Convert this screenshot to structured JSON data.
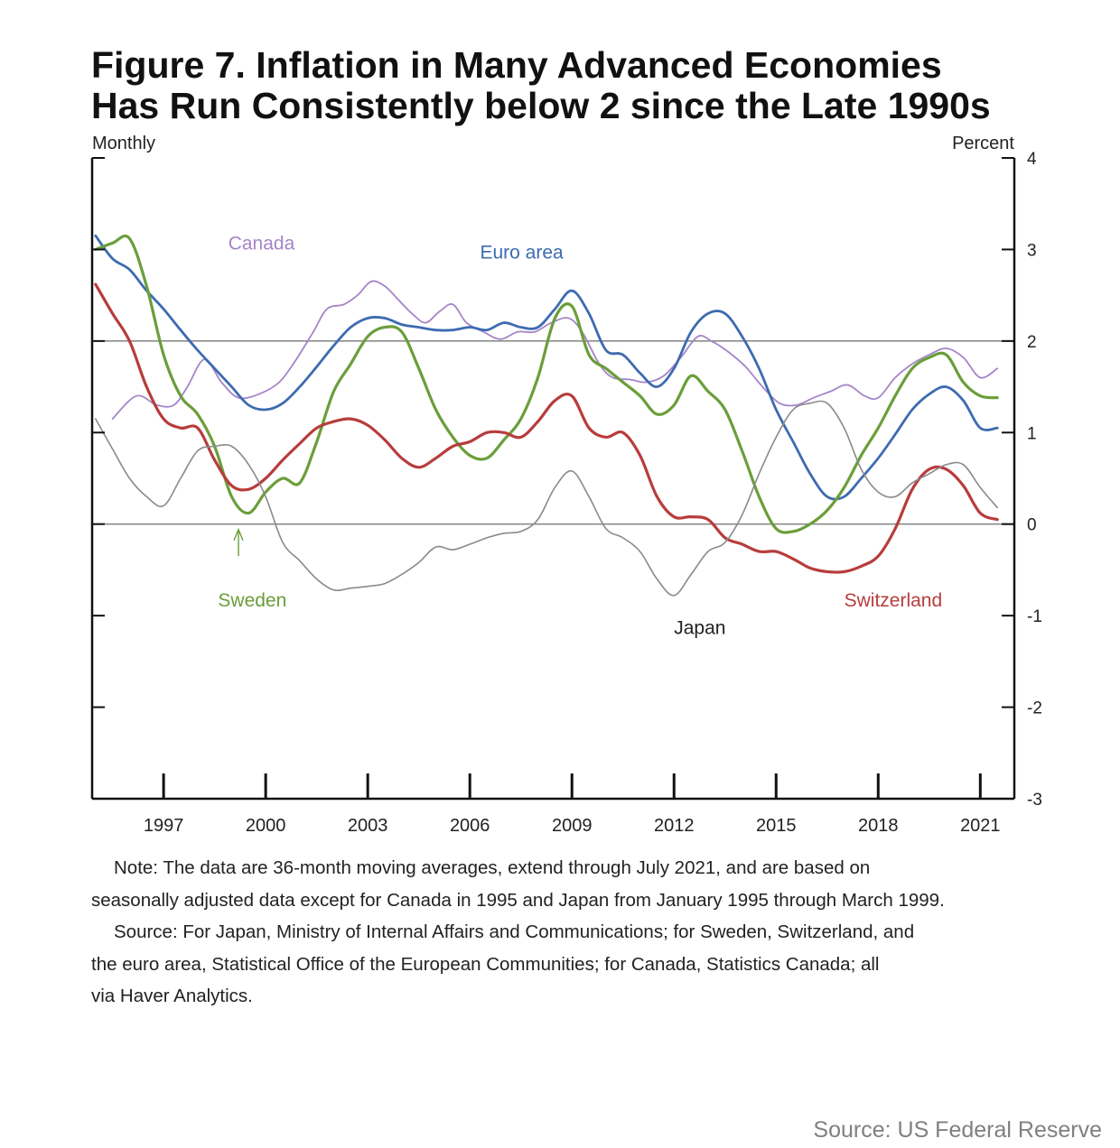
{
  "figure": {
    "title_line1": "Figure 7. Inflation in Many Advanced Economies",
    "title_line2": "Has Run Consistently below 2 since the Late 1990s",
    "left_unit": "Monthly",
    "right_unit": "Percent",
    "note_line1": "Note:  The data are 36-month moving averages, extend through July 2021, and are based on",
    "note_line2": "seasonally adjusted data except for Canada in 1995 and Japan from January 1995 through March 1999.",
    "source_line1": "Source:  For Japan, Ministry of Internal Affairs and Communications; for Sweden, Switzerland, and",
    "source_line2": "the euro area, Statistical Office of the European Communities; for Canada, Statistics Canada; all",
    "source_line3": "via Haver Analytics.",
    "credit": "Source: US Federal Reserve"
  },
  "chart_data": {
    "type": "line",
    "title": "Figure 7. Inflation in Many Advanced Economies Has Run Consistently below 2 since the Late 1990s",
    "xlabel": "",
    "ylabel": "Percent",
    "xlim": [
      1994.9,
      2022.0
    ],
    "ylim": [
      -3,
      4
    ],
    "x_ticks": [
      1997,
      2000,
      2003,
      2006,
      2009,
      2012,
      2015,
      2018,
      2021
    ],
    "x_tick_labels": [
      "1997",
      "2000",
      "2003",
      "2006",
      "2009",
      "2012",
      "2015",
      "2018",
      "2021"
    ],
    "y_ticks": [
      -3,
      -2,
      -1,
      0,
      1,
      2,
      3,
      4
    ],
    "y_tick_labels": [
      "-3",
      "-2",
      "-1",
      "0",
      "1",
      "2",
      "3",
      "4"
    ],
    "reference_lines": [
      0,
      2
    ],
    "grid": false,
    "series": [
      {
        "name": "Canada",
        "color": "#a585c8",
        "label_pos": [
          1998.9,
          3.0
        ],
        "points": [
          [
            1995.5,
            1.15
          ],
          [
            1996.2,
            1.4
          ],
          [
            1996.8,
            1.3
          ],
          [
            1997.3,
            1.3
          ],
          [
            1997.7,
            1.5
          ],
          [
            1998.2,
            1.8
          ],
          [
            1998.7,
            1.55
          ],
          [
            1999.2,
            1.38
          ],
          [
            1999.8,
            1.42
          ],
          [
            2000.4,
            1.55
          ],
          [
            2000.9,
            1.8
          ],
          [
            2001.4,
            2.1
          ],
          [
            2001.8,
            2.35
          ],
          [
            2002.3,
            2.4
          ],
          [
            2002.7,
            2.5
          ],
          [
            2003.1,
            2.65
          ],
          [
            2003.5,
            2.6
          ],
          [
            2003.9,
            2.45
          ],
          [
            2004.3,
            2.3
          ],
          [
            2004.7,
            2.2
          ],
          [
            2005.1,
            2.32
          ],
          [
            2005.5,
            2.4
          ],
          [
            2005.9,
            2.2
          ],
          [
            2006.4,
            2.1
          ],
          [
            2006.9,
            2.02
          ],
          [
            2007.4,
            2.1
          ],
          [
            2007.9,
            2.1
          ],
          [
            2008.4,
            2.2
          ],
          [
            2008.9,
            2.25
          ],
          [
            2009.3,
            2.1
          ],
          [
            2009.8,
            1.75
          ],
          [
            2010.2,
            1.6
          ],
          [
            2010.7,
            1.58
          ],
          [
            2011.2,
            1.55
          ],
          [
            2011.7,
            1.62
          ],
          [
            2012.2,
            1.82
          ],
          [
            2012.7,
            2.05
          ],
          [
            2013.1,
            2.0
          ],
          [
            2013.6,
            1.88
          ],
          [
            2014.1,
            1.72
          ],
          [
            2014.6,
            1.5
          ],
          [
            2015.1,
            1.32
          ],
          [
            2015.6,
            1.3
          ],
          [
            2016.1,
            1.38
          ],
          [
            2016.6,
            1.45
          ],
          [
            2017.1,
            1.52
          ],
          [
            2017.6,
            1.4
          ],
          [
            2018.0,
            1.38
          ],
          [
            2018.5,
            1.6
          ],
          [
            2019.0,
            1.75
          ],
          [
            2019.5,
            1.85
          ],
          [
            2020.0,
            1.92
          ],
          [
            2020.5,
            1.82
          ],
          [
            2021.0,
            1.6
          ],
          [
            2021.5,
            1.7
          ]
        ]
      },
      {
        "name": "Euro area",
        "color": "#3d6bb0",
        "label_pos": [
          2006.3,
          2.9
        ],
        "points": [
          [
            1995.0,
            3.15
          ],
          [
            1995.5,
            2.9
          ],
          [
            1996.0,
            2.78
          ],
          [
            1996.5,
            2.55
          ],
          [
            1997.0,
            2.35
          ],
          [
            1997.5,
            2.12
          ],
          [
            1998.0,
            1.9
          ],
          [
            1998.5,
            1.7
          ],
          [
            1999.0,
            1.5
          ],
          [
            1999.5,
            1.3
          ],
          [
            2000.0,
            1.25
          ],
          [
            2000.5,
            1.32
          ],
          [
            2001.0,
            1.5
          ],
          [
            2001.5,
            1.72
          ],
          [
            2002.0,
            1.95
          ],
          [
            2002.5,
            2.15
          ],
          [
            2003.0,
            2.25
          ],
          [
            2003.5,
            2.25
          ],
          [
            2004.0,
            2.18
          ],
          [
            2004.5,
            2.15
          ],
          [
            2005.0,
            2.12
          ],
          [
            2005.5,
            2.12
          ],
          [
            2006.0,
            2.15
          ],
          [
            2006.5,
            2.12
          ],
          [
            2007.0,
            2.2
          ],
          [
            2007.5,
            2.15
          ],
          [
            2008.0,
            2.15
          ],
          [
            2008.5,
            2.35
          ],
          [
            2009.0,
            2.55
          ],
          [
            2009.5,
            2.3
          ],
          [
            2010.0,
            1.9
          ],
          [
            2010.5,
            1.85
          ],
          [
            2011.0,
            1.65
          ],
          [
            2011.5,
            1.5
          ],
          [
            2012.0,
            1.7
          ],
          [
            2012.5,
            2.1
          ],
          [
            2013.0,
            2.3
          ],
          [
            2013.5,
            2.3
          ],
          [
            2014.0,
            2.05
          ],
          [
            2014.5,
            1.7
          ],
          [
            2015.0,
            1.25
          ],
          [
            2015.5,
            0.9
          ],
          [
            2016.0,
            0.55
          ],
          [
            2016.5,
            0.3
          ],
          [
            2017.0,
            0.3
          ],
          [
            2017.5,
            0.5
          ],
          [
            2018.0,
            0.72
          ],
          [
            2018.5,
            0.98
          ],
          [
            2019.0,
            1.25
          ],
          [
            2019.5,
            1.42
          ],
          [
            2020.0,
            1.5
          ],
          [
            2020.5,
            1.35
          ],
          [
            2021.0,
            1.05
          ],
          [
            2021.5,
            1.05
          ]
        ]
      },
      {
        "name": "Sweden",
        "color": "#6a9e3a",
        "label_pos": [
          1998.6,
          -0.9
        ],
        "arrow": {
          "from": [
            1999.2,
            -0.35
          ],
          "to": [
            1999.2,
            0.0
          ]
        },
        "points": [
          [
            1995.0,
            3.0
          ],
          [
            1995.5,
            3.07
          ],
          [
            1996.0,
            3.12
          ],
          [
            1996.5,
            2.6
          ],
          [
            1997.0,
            1.85
          ],
          [
            1997.5,
            1.4
          ],
          [
            1998.0,
            1.2
          ],
          [
            1998.5,
            0.85
          ],
          [
            1999.0,
            0.3
          ],
          [
            1999.5,
            0.12
          ],
          [
            2000.0,
            0.35
          ],
          [
            2000.5,
            0.5
          ],
          [
            2001.0,
            0.45
          ],
          [
            2001.5,
            0.9
          ],
          [
            2002.0,
            1.45
          ],
          [
            2002.5,
            1.75
          ],
          [
            2003.0,
            2.05
          ],
          [
            2003.5,
            2.15
          ],
          [
            2004.0,
            2.1
          ],
          [
            2004.5,
            1.7
          ],
          [
            2005.0,
            1.25
          ],
          [
            2005.5,
            0.95
          ],
          [
            2006.0,
            0.75
          ],
          [
            2006.5,
            0.72
          ],
          [
            2007.0,
            0.92
          ],
          [
            2007.5,
            1.15
          ],
          [
            2008.0,
            1.6
          ],
          [
            2008.5,
            2.25
          ],
          [
            2009.0,
            2.38
          ],
          [
            2009.5,
            1.85
          ],
          [
            2010.0,
            1.7
          ],
          [
            2010.5,
            1.55
          ],
          [
            2011.0,
            1.4
          ],
          [
            2011.5,
            1.2
          ],
          [
            2012.0,
            1.3
          ],
          [
            2012.5,
            1.62
          ],
          [
            2013.0,
            1.45
          ],
          [
            2013.5,
            1.25
          ],
          [
            2014.0,
            0.8
          ],
          [
            2014.5,
            0.3
          ],
          [
            2015.0,
            -0.05
          ],
          [
            2015.5,
            -0.08
          ],
          [
            2016.0,
            0.0
          ],
          [
            2016.5,
            0.15
          ],
          [
            2017.0,
            0.4
          ],
          [
            2017.5,
            0.75
          ],
          [
            2018.0,
            1.05
          ],
          [
            2018.5,
            1.4
          ],
          [
            2019.0,
            1.7
          ],
          [
            2019.5,
            1.82
          ],
          [
            2020.0,
            1.85
          ],
          [
            2020.5,
            1.55
          ],
          [
            2021.0,
            1.4
          ],
          [
            2021.5,
            1.38
          ]
        ]
      },
      {
        "name": "Switzerland",
        "color": "#b83c3c",
        "label_pos": [
          2017.0,
          -0.9
        ],
        "points": [
          [
            1995.0,
            2.62
          ],
          [
            1995.5,
            2.3
          ],
          [
            1996.0,
            2.0
          ],
          [
            1996.5,
            1.5
          ],
          [
            1997.0,
            1.15
          ],
          [
            1997.5,
            1.05
          ],
          [
            1998.0,
            1.05
          ],
          [
            1998.5,
            0.7
          ],
          [
            1999.0,
            0.42
          ],
          [
            1999.5,
            0.38
          ],
          [
            2000.0,
            0.5
          ],
          [
            2000.5,
            0.7
          ],
          [
            2001.0,
            0.88
          ],
          [
            2001.5,
            1.05
          ],
          [
            2002.0,
            1.12
          ],
          [
            2002.5,
            1.15
          ],
          [
            2003.0,
            1.08
          ],
          [
            2003.5,
            0.92
          ],
          [
            2004.0,
            0.72
          ],
          [
            2004.5,
            0.62
          ],
          [
            2005.0,
            0.72
          ],
          [
            2005.5,
            0.85
          ],
          [
            2006.0,
            0.9
          ],
          [
            2006.5,
            1.0
          ],
          [
            2007.0,
            1.0
          ],
          [
            2007.5,
            0.95
          ],
          [
            2008.0,
            1.12
          ],
          [
            2008.5,
            1.35
          ],
          [
            2009.0,
            1.4
          ],
          [
            2009.5,
            1.05
          ],
          [
            2010.0,
            0.95
          ],
          [
            2010.5,
            1.0
          ],
          [
            2011.0,
            0.75
          ],
          [
            2011.5,
            0.3
          ],
          [
            2012.0,
            0.08
          ],
          [
            2012.5,
            0.08
          ],
          [
            2013.0,
            0.05
          ],
          [
            2013.5,
            -0.15
          ],
          [
            2014.0,
            -0.22
          ],
          [
            2014.5,
            -0.3
          ],
          [
            2015.0,
            -0.3
          ],
          [
            2015.5,
            -0.38
          ],
          [
            2016.0,
            -0.48
          ],
          [
            2016.5,
            -0.52
          ],
          [
            2017.0,
            -0.52
          ],
          [
            2017.5,
            -0.46
          ],
          [
            2018.0,
            -0.35
          ],
          [
            2018.5,
            -0.05
          ],
          [
            2019.0,
            0.38
          ],
          [
            2019.5,
            0.6
          ],
          [
            2020.0,
            0.6
          ],
          [
            2020.5,
            0.42
          ],
          [
            2021.0,
            0.12
          ],
          [
            2021.5,
            0.05
          ]
        ]
      },
      {
        "name": "Japan",
        "color": "#8a8a8a",
        "label_pos": [
          2012.0,
          -1.2
        ],
        "points": [
          [
            1995.0,
            1.15
          ],
          [
            1995.5,
            0.82
          ],
          [
            1996.0,
            0.5
          ],
          [
            1996.5,
            0.3
          ],
          [
            1997.0,
            0.2
          ],
          [
            1997.5,
            0.5
          ],
          [
            1998.0,
            0.8
          ],
          [
            1998.5,
            0.85
          ],
          [
            1999.0,
            0.85
          ],
          [
            1999.5,
            0.65
          ],
          [
            2000.0,
            0.3
          ],
          [
            2000.5,
            -0.2
          ],
          [
            2001.0,
            -0.4
          ],
          [
            2001.5,
            -0.6
          ],
          [
            2002.0,
            -0.72
          ],
          [
            2002.5,
            -0.7
          ],
          [
            2003.0,
            -0.68
          ],
          [
            2003.5,
            -0.65
          ],
          [
            2004.0,
            -0.55
          ],
          [
            2004.5,
            -0.42
          ],
          [
            2005.0,
            -0.25
          ],
          [
            2005.5,
            -0.28
          ],
          [
            2006.0,
            -0.22
          ],
          [
            2006.5,
            -0.15
          ],
          [
            2007.0,
            -0.1
          ],
          [
            2007.5,
            -0.08
          ],
          [
            2008.0,
            0.05
          ],
          [
            2008.5,
            0.4
          ],
          [
            2009.0,
            0.58
          ],
          [
            2009.5,
            0.3
          ],
          [
            2010.0,
            -0.05
          ],
          [
            2010.5,
            -0.15
          ],
          [
            2011.0,
            -0.3
          ],
          [
            2011.5,
            -0.6
          ],
          [
            2012.0,
            -0.78
          ],
          [
            2012.5,
            -0.55
          ],
          [
            2013.0,
            -0.3
          ],
          [
            2013.5,
            -0.2
          ],
          [
            2014.0,
            0.1
          ],
          [
            2014.5,
            0.55
          ],
          [
            2015.0,
            0.95
          ],
          [
            2015.5,
            1.25
          ],
          [
            2016.0,
            1.32
          ],
          [
            2016.5,
            1.32
          ],
          [
            2017.0,
            1.05
          ],
          [
            2017.5,
            0.6
          ],
          [
            2018.0,
            0.35
          ],
          [
            2018.5,
            0.3
          ],
          [
            2019.0,
            0.45
          ],
          [
            2019.5,
            0.55
          ],
          [
            2020.0,
            0.65
          ],
          [
            2020.5,
            0.65
          ],
          [
            2021.0,
            0.4
          ],
          [
            2021.5,
            0.18
          ]
        ]
      }
    ]
  }
}
